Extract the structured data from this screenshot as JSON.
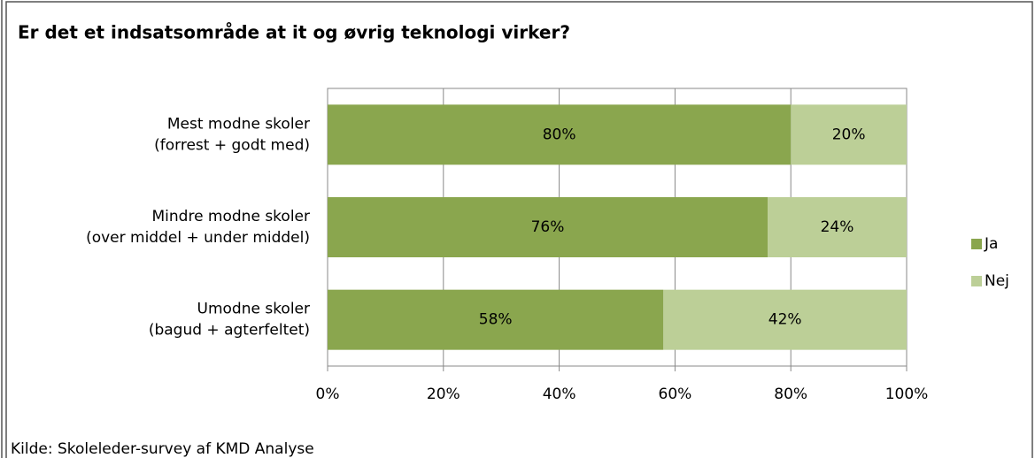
{
  "chart_data": {
    "type": "stacked-barh",
    "title": "Er det et indsatsområde at it og øvrig teknologi virker?",
    "categories": [
      [
        "Mest modne skoler",
        "(forrest + godt med)"
      ],
      [
        "Mindre modne skoler",
        "(over middel + under middel)"
      ],
      [
        "Umodne skoler",
        "(bagud + agterfeltet)"
      ]
    ],
    "series": [
      {
        "name": "Ja",
        "color": "#8aa64e",
        "values": [
          80,
          76,
          58
        ],
        "value_labels": [
          "80%",
          "76%",
          "58%"
        ]
      },
      {
        "name": "Nej",
        "color": "#bccf97",
        "values": [
          20,
          24,
          42
        ],
        "value_labels": [
          "20%",
          "24%",
          "42%"
        ]
      }
    ],
    "xlim": [
      0,
      100
    ],
    "xticks": [
      {
        "value": 0,
        "label": "0%"
      },
      {
        "value": 20,
        "label": "20%"
      },
      {
        "value": 40,
        "label": "40%"
      },
      {
        "value": 60,
        "label": "60%"
      },
      {
        "value": 80,
        "label": "80%"
      },
      {
        "value": 100,
        "label": "100%"
      }
    ],
    "grid": true,
    "legend": "right",
    "source": "Kilde: Skoleleder-survey af KMD Analyse"
  }
}
